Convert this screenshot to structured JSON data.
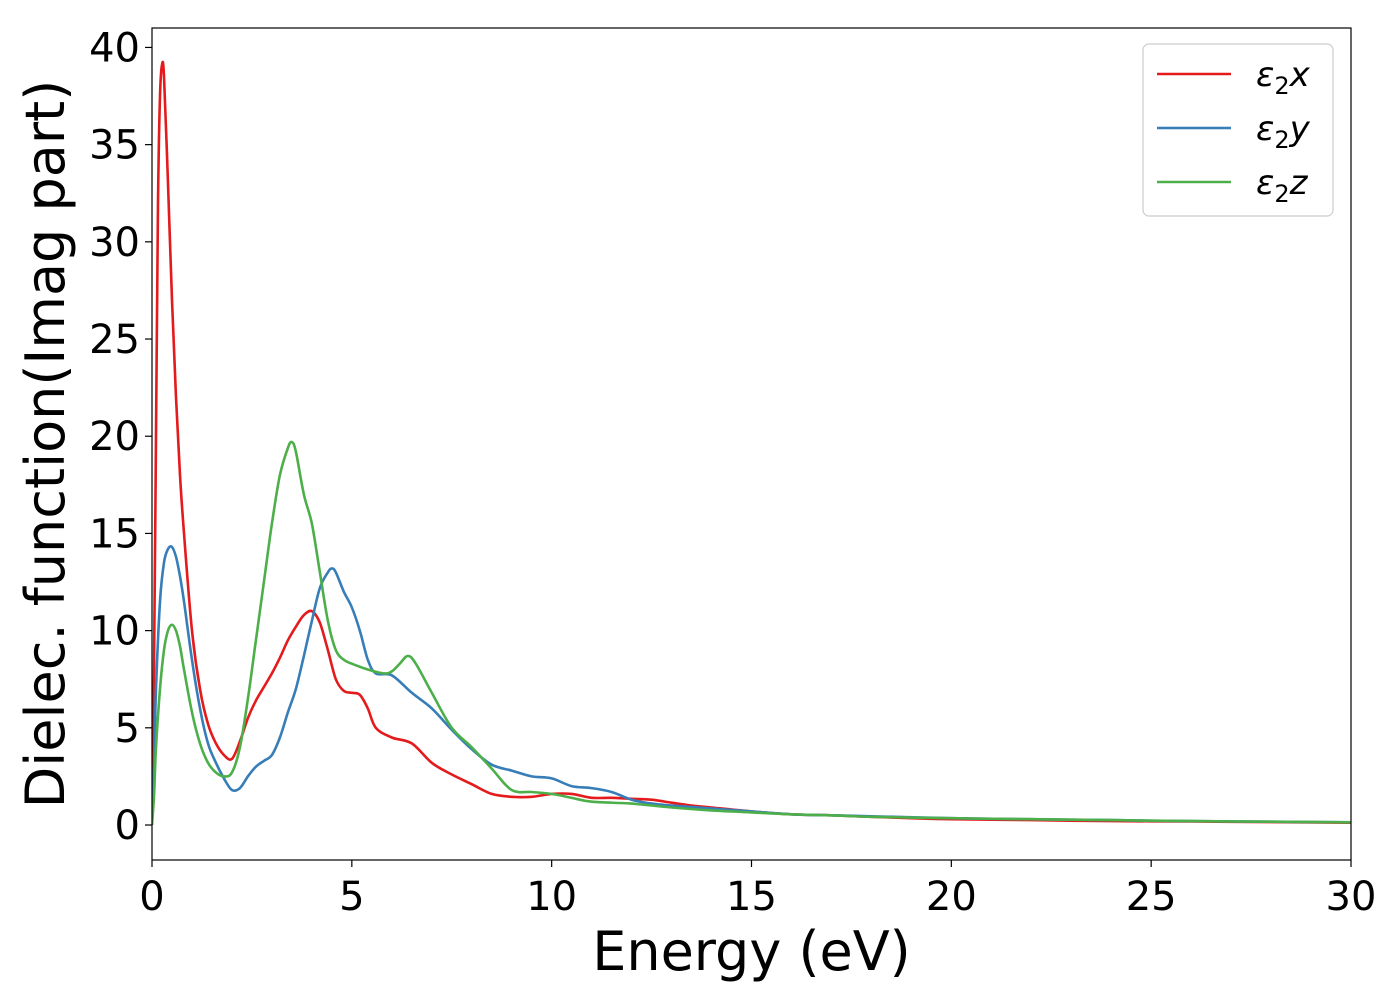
{
  "chart_data": {
    "type": "line",
    "xlabel": "Energy (eV)",
    "ylabel": "Dielec. function(Imag part)",
    "xlim": [
      0,
      30
    ],
    "ylim": [
      -1.8,
      41
    ],
    "xticks": [
      0,
      5,
      10,
      15,
      20,
      25,
      30
    ],
    "yticks": [
      0,
      5,
      10,
      15,
      20,
      25,
      30,
      35,
      40
    ],
    "grid": false,
    "legend_position": "top-right",
    "series": [
      {
        "name": "ε₂x",
        "legend_base": "ε",
        "legend_sub": "2",
        "legend_var": "x",
        "color": "#e41a1c",
        "x": [
          0,
          0.05,
          0.1,
          0.15,
          0.2,
          0.25,
          0.3,
          0.4,
          0.5,
          0.6,
          0.7,
          0.8,
          1.0,
          1.2,
          1.4,
          1.6,
          1.8,
          2.0,
          2.2,
          2.4,
          2.6,
          2.8,
          3.0,
          3.2,
          3.4,
          3.6,
          3.8,
          4.0,
          4.2,
          4.4,
          4.6,
          4.8,
          5.0,
          5.2,
          5.4,
          5.6,
          6.0,
          6.5,
          7.0,
          7.5,
          8.0,
          8.5,
          9.0,
          9.5,
          10.0,
          10.5,
          11.0,
          11.5,
          12.0,
          12.5,
          13.0,
          13.5,
          14.0,
          15.0,
          16.0,
          17.0,
          18.0,
          19.0,
          20.0,
          22.0,
          24.0,
          26.0,
          28.0,
          30.0
        ],
        "values": [
          0.5,
          8,
          20,
          32,
          37.5,
          39.1,
          38.5,
          33,
          27,
          22,
          18,
          15,
          10,
          7,
          5.2,
          4.2,
          3.6,
          3.4,
          4.3,
          5.5,
          6.4,
          7.1,
          7.8,
          8.6,
          9.5,
          10.2,
          10.8,
          11.0,
          10.4,
          9.0,
          7.5,
          6.9,
          6.8,
          6.7,
          6.0,
          5.0,
          4.5,
          4.2,
          3.2,
          2.6,
          2.1,
          1.6,
          1.45,
          1.45,
          1.6,
          1.6,
          1.4,
          1.4,
          1.35,
          1.3,
          1.15,
          1.0,
          0.9,
          0.7,
          0.55,
          0.5,
          0.42,
          0.35,
          0.3,
          0.25,
          0.2,
          0.18,
          0.15,
          0.12
        ]
      },
      {
        "name": "ε₂y",
        "legend_base": "ε",
        "legend_sub": "2",
        "legend_var": "y",
        "color": "#377eb8",
        "x": [
          0,
          0.05,
          0.1,
          0.2,
          0.3,
          0.4,
          0.5,
          0.6,
          0.7,
          0.8,
          1.0,
          1.2,
          1.4,
          1.6,
          1.8,
          2.0,
          2.2,
          2.4,
          2.6,
          2.8,
          3.0,
          3.2,
          3.4,
          3.6,
          3.8,
          4.0,
          4.2,
          4.4,
          4.5,
          4.6,
          4.8,
          5.0,
          5.2,
          5.4,
          5.6,
          6.0,
          6.5,
          7.0,
          7.5,
          8.0,
          8.5,
          9.0,
          9.5,
          10.0,
          10.5,
          11.0,
          11.5,
          12.0,
          12.5,
          13.0,
          14.0,
          15.0,
          16.0,
          17.0,
          18.0,
          20.0,
          22.0,
          24.0,
          26.0,
          28.0,
          30.0
        ],
        "values": [
          0,
          3,
          7,
          11.5,
          13.5,
          14.2,
          14.3,
          13.8,
          12.8,
          11.5,
          8.5,
          6,
          4.2,
          3.2,
          2.4,
          1.8,
          1.9,
          2.5,
          3.0,
          3.3,
          3.6,
          4.5,
          5.8,
          7,
          8.7,
          10.5,
          12.2,
          13.0,
          13.2,
          13.0,
          12.0,
          11.2,
          10.0,
          8.5,
          7.8,
          7.7,
          6.8,
          6.0,
          4.9,
          3.9,
          3.1,
          2.8,
          2.5,
          2.4,
          2.0,
          1.9,
          1.7,
          1.3,
          1.1,
          1.0,
          0.85,
          0.7,
          0.55,
          0.5,
          0.45,
          0.35,
          0.3,
          0.25,
          0.2,
          0.17,
          0.14
        ]
      },
      {
        "name": "ε₂z",
        "legend_base": "ε",
        "legend_sub": "2",
        "legend_var": "z",
        "color": "#4daf4a",
        "x": [
          0,
          0.05,
          0.1,
          0.2,
          0.3,
          0.4,
          0.5,
          0.6,
          0.7,
          0.8,
          1.0,
          1.2,
          1.4,
          1.6,
          1.8,
          2.0,
          2.2,
          2.4,
          2.6,
          2.8,
          3.0,
          3.2,
          3.4,
          3.5,
          3.6,
          3.8,
          4.0,
          4.2,
          4.4,
          4.6,
          4.8,
          5.0,
          5.4,
          5.8,
          6.0,
          6.2,
          6.4,
          6.6,
          7.0,
          7.5,
          8.0,
          8.5,
          9.0,
          9.5,
          10.0,
          10.5,
          11.0,
          12.0,
          13.0,
          14.0,
          15.0,
          16.0,
          17.0,
          18.0,
          20.0,
          22.0,
          24.0,
          26.0,
          28.0,
          30.0
        ],
        "values": [
          0,
          1.5,
          4,
          7,
          9,
          10,
          10.3,
          10.0,
          9.2,
          8.0,
          5.8,
          4.2,
          3.2,
          2.7,
          2.5,
          2.7,
          4.0,
          6.5,
          9.5,
          12.5,
          15.5,
          18.0,
          19.4,
          19.7,
          19.2,
          17.0,
          15.5,
          13.0,
          10.5,
          9.0,
          8.5,
          8.3,
          8.0,
          7.8,
          7.9,
          8.3,
          8.7,
          8.3,
          6.8,
          5.0,
          4.0,
          2.9,
          1.8,
          1.7,
          1.6,
          1.4,
          1.2,
          1.1,
          0.9,
          0.75,
          0.65,
          0.55,
          0.5,
          0.42,
          0.35,
          0.3,
          0.25,
          0.2,
          0.17,
          0.14
        ]
      }
    ]
  }
}
